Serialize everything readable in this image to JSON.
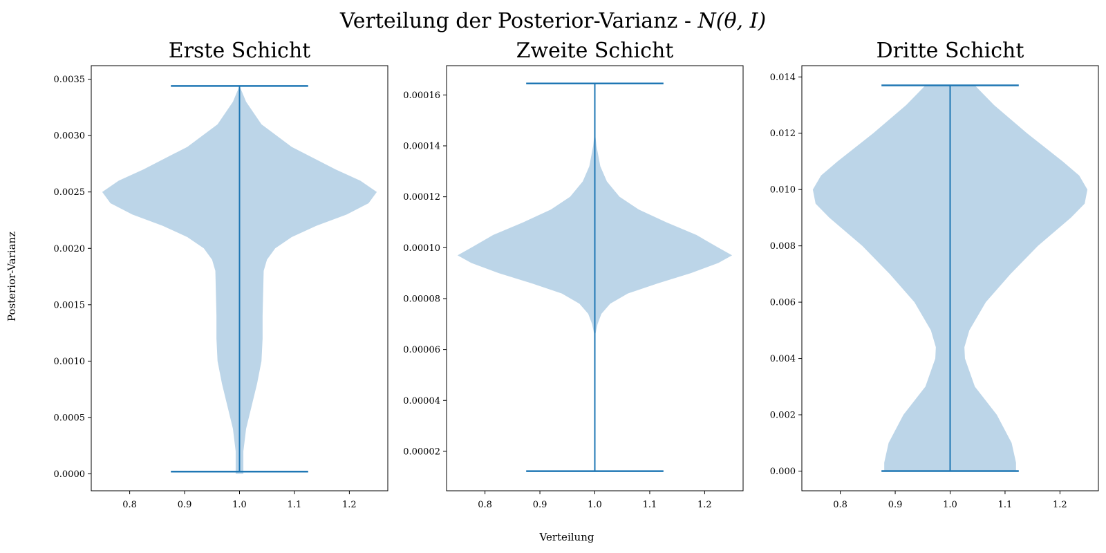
{
  "figure": {
    "title": "Verteilung der Posterior-Varianz - ",
    "title_math": "N(θ, I)",
    "xlabel": "Verteilung",
    "ylabel": "Posterior-Varianz"
  },
  "colors": {
    "violin_fill": "#bcd5e8",
    "line": "#1f77b4",
    "axes": "#000000"
  },
  "chart_data": [
    {
      "type": "violin",
      "title": "Erste Schicht",
      "xlim": [
        0.73,
        1.27
      ],
      "ylim": [
        -0.00015,
        0.00362
      ],
      "xticks": [
        0.8,
        0.9,
        1.0,
        1.1,
        1.2
      ],
      "xtick_labels": [
        "0.8",
        "0.9",
        "1.0",
        "1.1",
        "1.2"
      ],
      "yticks": [
        0,
        0.0005,
        0.001,
        0.0015,
        0.002,
        0.0025,
        0.003,
        0.0035
      ],
      "ytick_labels": [
        "0.0000",
        "0.0005",
        "0.0010",
        "0.0015",
        "0.0020",
        "0.0025",
        "0.0030",
        "0.0035"
      ],
      "position": 1.0,
      "min": 2e-05,
      "max": 0.00344,
      "cap_halfwidth": 0.125,
      "density_profile": [
        [
          0.00344,
          0.0
        ],
        [
          0.0033,
          0.012
        ],
        [
          0.0031,
          0.04
        ],
        [
          0.0029,
          0.095
        ],
        [
          0.0027,
          0.175
        ],
        [
          0.0026,
          0.22
        ],
        [
          0.0025,
          0.25
        ],
        [
          0.0024,
          0.235
        ],
        [
          0.0023,
          0.195
        ],
        [
          0.0022,
          0.14
        ],
        [
          0.0021,
          0.095
        ],
        [
          0.002,
          0.065
        ],
        [
          0.0019,
          0.05
        ],
        [
          0.0018,
          0.044
        ],
        [
          0.0016,
          0.043
        ],
        [
          0.0014,
          0.042
        ],
        [
          0.0012,
          0.042
        ],
        [
          0.001,
          0.04
        ],
        [
          0.0008,
          0.032
        ],
        [
          0.0006,
          0.022
        ],
        [
          0.0004,
          0.012
        ],
        [
          0.0002,
          0.007
        ],
        [
          0.0,
          0.007
        ]
      ]
    },
    {
      "type": "violin",
      "title": "Zweite Schicht",
      "xlim": [
        0.73,
        1.27
      ],
      "ylim": [
        4.5e-06,
        0.0001715
      ],
      "xticks": [
        0.8,
        0.9,
        1.0,
        1.1,
        1.2
      ],
      "xtick_labels": [
        "0.8",
        "0.9",
        "1.0",
        "1.1",
        "1.2"
      ],
      "yticks": [
        2e-05,
        4e-05,
        6e-05,
        8e-05,
        0.0001,
        0.00012,
        0.00014,
        0.00016
      ],
      "ytick_labels": [
        "0.00002",
        "0.00004",
        "0.00006",
        "0.00008",
        "0.00010",
        "0.00012",
        "0.00014",
        "0.00016"
      ],
      "position": 1.0,
      "min": 1.22e-05,
      "max": 0.0001645,
      "cap_halfwidth": 0.125,
      "density_profile": [
        [
          0.000146,
          0.0
        ],
        [
          0.00014,
          0.003
        ],
        [
          0.000132,
          0.01
        ],
        [
          0.000126,
          0.022
        ],
        [
          0.00012,
          0.045
        ],
        [
          0.000115,
          0.08
        ],
        [
          0.00011,
          0.13
        ],
        [
          0.000105,
          0.185
        ],
        [
          0.0001,
          0.225
        ],
        [
          9.7e-05,
          0.25
        ],
        [
          9.4e-05,
          0.225
        ],
        [
          9e-05,
          0.175
        ],
        [
          8.6e-05,
          0.115
        ],
        [
          8.2e-05,
          0.06
        ],
        [
          7.8e-05,
          0.028
        ],
        [
          7.4e-05,
          0.012
        ],
        [
          7e-05,
          0.005
        ],
        [
          6.5e-05,
          0.0
        ]
      ]
    },
    {
      "type": "violin",
      "title": "Dritte Schicht",
      "xlim": [
        0.73,
        1.27
      ],
      "ylim": [
        -0.0007,
        0.0144
      ],
      "xticks": [
        0.8,
        0.9,
        1.0,
        1.1,
        1.2
      ],
      "xtick_labels": [
        "0.8",
        "0.9",
        "1.0",
        "1.1",
        "1.2"
      ],
      "yticks": [
        0,
        0.002,
        0.004,
        0.006,
        0.008,
        0.01,
        0.012,
        0.014
      ],
      "ytick_labels": [
        "0.000",
        "0.002",
        "0.004",
        "0.006",
        "0.008",
        "0.010",
        "0.012",
        "0.014"
      ],
      "position": 1.0,
      "min": 0.0,
      "max": 0.0137,
      "cap_halfwidth": 0.125,
      "density_profile": [
        [
          0.0137,
          0.045
        ],
        [
          0.013,
          0.08
        ],
        [
          0.012,
          0.14
        ],
        [
          0.011,
          0.205
        ],
        [
          0.0105,
          0.235
        ],
        [
          0.01,
          0.25
        ],
        [
          0.0095,
          0.245
        ],
        [
          0.009,
          0.22
        ],
        [
          0.008,
          0.16
        ],
        [
          0.007,
          0.11
        ],
        [
          0.006,
          0.065
        ],
        [
          0.005,
          0.035
        ],
        [
          0.0044,
          0.026
        ],
        [
          0.004,
          0.027
        ],
        [
          0.003,
          0.045
        ],
        [
          0.002,
          0.085
        ],
        [
          0.001,
          0.112
        ],
        [
          0.0003,
          0.12
        ],
        [
          0.0,
          0.12
        ]
      ]
    }
  ]
}
